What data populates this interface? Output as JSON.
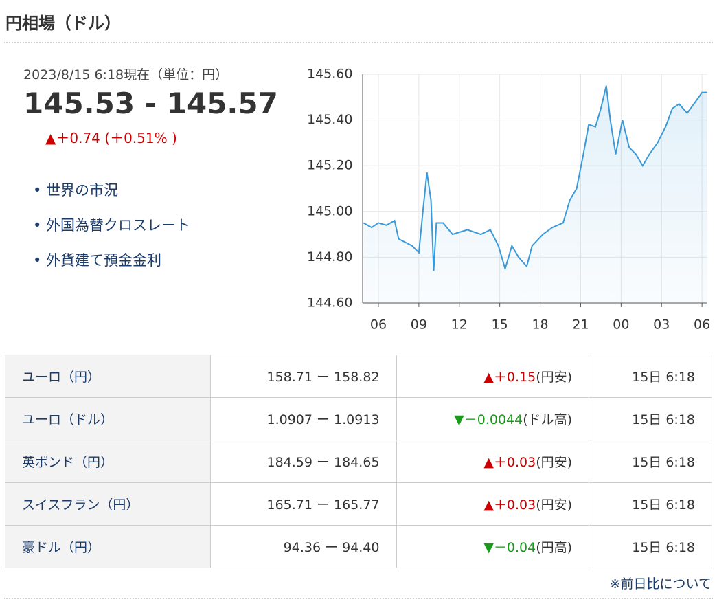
{
  "header": {
    "title": "円相場（ドル）"
  },
  "quote": {
    "timestamp": "2023/8/15 6:18現在（単位：円）",
    "price": "145.53 - 145.57",
    "change": "▲＋0.74 (＋0.51% )"
  },
  "links": [
    "世界の市況",
    "外国為替クロスレート",
    "外貨建て預金金利"
  ],
  "chart_data": {
    "type": "line",
    "color": "#3a9ad9",
    "grid": true,
    "x": [
      -1.1,
      -0.5,
      0,
      0.6,
      1.2,
      1.5,
      2.5,
      3,
      3.3,
      3.6,
      3.9,
      4.1,
      4.3,
      4.8,
      5.5,
      6.6,
      7.6,
      8.3,
      8.9,
      9.4,
      9.9,
      10.4,
      11,
      11.4,
      12.2,
      12.9,
      13.7,
      14.2,
      14.7,
      15.2,
      15.6,
      16.1,
      16.5,
      16.9,
      17.2,
      17.6,
      18.1,
      18.6,
      19.1,
      19.6,
      20.1,
      20.7,
      21.3,
      21.8,
      22.3,
      22.9,
      23.4,
      24,
      24.4
    ],
    "values": [
      144.95,
      144.93,
      144.95,
      144.94,
      144.96,
      144.88,
      144.85,
      144.82,
      145.0,
      145.17,
      145.05,
      144.74,
      144.95,
      144.95,
      144.9,
      144.92,
      144.9,
      144.92,
      144.85,
      144.75,
      144.85,
      144.8,
      144.76,
      144.85,
      144.9,
      144.93,
      144.95,
      145.05,
      145.1,
      145.25,
      145.38,
      145.37,
      145.45,
      145.55,
      145.4,
      145.25,
      145.4,
      145.28,
      145.25,
      145.2,
      145.25,
      145.3,
      145.37,
      145.45,
      145.47,
      145.43,
      145.47,
      145.52,
      145.52
    ],
    "xlim": [
      -1.17,
      24.4
    ],
    "xticks": [
      {
        "value": 0,
        "label": "06"
      },
      {
        "value": 3,
        "label": "09"
      },
      {
        "value": 6,
        "label": "12"
      },
      {
        "value": 9,
        "label": "15"
      },
      {
        "value": 12,
        "label": "18"
      },
      {
        "value": 15,
        "label": "21"
      },
      {
        "value": 18,
        "label": "00"
      },
      {
        "value": 21,
        "label": "03"
      },
      {
        "value": 24,
        "label": "06"
      }
    ],
    "ylim": [
      144.6,
      145.6
    ],
    "yticks": [
      {
        "value": 144.6,
        "label": "144.60"
      },
      {
        "value": 144.8,
        "label": "144.80"
      },
      {
        "value": 145,
        "label": "145.00"
      },
      {
        "value": 145.2,
        "label": "145.20"
      },
      {
        "value": 145.4,
        "label": "145.40"
      },
      {
        "value": 145.6,
        "label": "145.60"
      }
    ]
  },
  "table": {
    "rows": [
      [
        "ユーロ（円）",
        "158.71 ー 158.82",
        "▲＋0.15",
        "(円安)",
        "15日 6:18"
      ],
      [
        "ユーロ（ドル）",
        "1.0907 ー 1.0913",
        "▼－0.0044",
        "(ドル高)",
        "15日 6:18"
      ],
      [
        "英ポンド（円）",
        "184.59 ー 184.65",
        "▲＋0.03",
        "(円安)",
        "15日 6:18"
      ],
      [
        "スイスフラン（円）",
        "165.71 ー 165.77",
        "▲＋0.03",
        "(円安)",
        "15日 6:18"
      ],
      [
        "豪ドル（円）",
        "94.36 ー 94.40",
        "▼－0.04",
        "(円高)",
        "15日 6:18"
      ]
    ]
  },
  "footnote": "※前日比について"
}
